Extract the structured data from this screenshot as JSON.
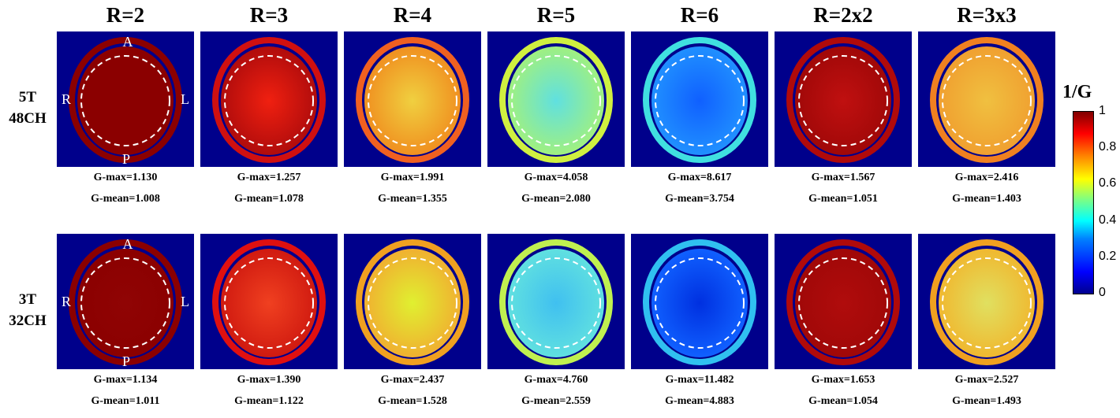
{
  "columns": [
    "R=2",
    "R=3",
    "R=4",
    "R=5",
    "R=6",
    "R=2x2",
    "R=3x3"
  ],
  "rows": [
    {
      "label_line1": "5T",
      "label_line2": "48CH",
      "cells": [
        {
          "gmax": "G-max=1.130",
          "gmean": "G-mean=1.008",
          "outer": "#8b0000",
          "inner": "#8b0000",
          "center": "#8b0000"
        },
        {
          "gmax": "G-max=1.257",
          "gmean": "G-mean=1.078",
          "outer": "#d01010",
          "inner": "#b00c0c",
          "center": "#f02010"
        },
        {
          "gmax": "G-max=1.991",
          "gmean": "G-mean=1.355",
          "outer": "#f06020",
          "inner": "#f09020",
          "center": "#f0d040"
        },
        {
          "gmax": "G-max=4.058",
          "gmean": "G-mean=2.080",
          "outer": "#d0f040",
          "inner": "#a0f080",
          "center": "#60e0e0"
        },
        {
          "gmax": "G-max=8.617",
          "gmean": "G-mean=3.754",
          "outer": "#40e0e0",
          "inner": "#2090ff",
          "center": "#1060ff"
        },
        {
          "gmax": "G-max=1.567",
          "gmean": "G-mean=1.051",
          "outer": "#b00a0a",
          "inner": "#a00808",
          "center": "#c01010"
        },
        {
          "gmax": "G-max=2.416",
          "gmean": "G-mean=1.403",
          "outer": "#f08020",
          "inner": "#f0a030",
          "center": "#f0c040"
        }
      ]
    },
    {
      "label_line1": "3T",
      "label_line2": "32CH",
      "cells": [
        {
          "gmax": "G-max=1.134",
          "gmean": "G-mean=1.011",
          "outer": "#8b0000",
          "inner": "#8b0000",
          "center": "#900404"
        },
        {
          "gmax": "G-max=1.390",
          "gmean": "G-mean=1.122",
          "outer": "#e01010",
          "inner": "#d01a10",
          "center": "#f04020"
        },
        {
          "gmax": "G-max=2.437",
          "gmean": "G-mean=1.528",
          "outer": "#f0a020",
          "inner": "#f0b030",
          "center": "#e0f030"
        },
        {
          "gmax": "G-max=4.760",
          "gmean": "G-mean=2.559",
          "outer": "#c0f050",
          "inner": "#60e0e0",
          "center": "#40c0f0"
        },
        {
          "gmax": "G-max=11.482",
          "gmean": "G-mean=4.883",
          "outer": "#30c0f0",
          "inner": "#1060ff",
          "center": "#0030e0"
        },
        {
          "gmax": "G-max=1.653",
          "gmean": "G-mean=1.054",
          "outer": "#b00a0a",
          "inner": "#a00808",
          "center": "#b00c0c"
        },
        {
          "gmax": "G-max=2.527",
          "gmean": "G-mean=1.493",
          "outer": "#f0a020",
          "inner": "#f0b830",
          "center": "#e0e060"
        }
      ]
    }
  ],
  "orientation": {
    "anterior": "A",
    "posterior": "P",
    "right": "R",
    "left": "L"
  },
  "colorbar": {
    "title": "1/G",
    "ticks": [
      "1",
      "0.8",
      "0.6",
      "0.4",
      "0.2",
      "0"
    ]
  }
}
